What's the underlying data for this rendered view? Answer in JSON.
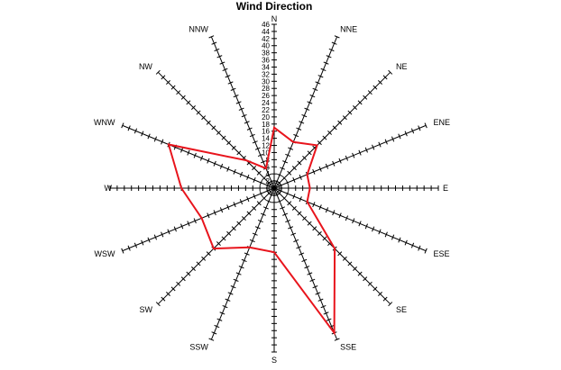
{
  "chart_data": {
    "type": "radar",
    "title": "Wind Direction",
    "directions": [
      "N",
      "NNE",
      "NE",
      "ENE",
      "E",
      "ESE",
      "SE",
      "SSE",
      "S",
      "SSW",
      "SW",
      "WSW",
      "W",
      "WNW",
      "NW",
      "NNW"
    ],
    "values": [
      17,
      14,
      17,
      10,
      10,
      10,
      24,
      44,
      18,
      18,
      24,
      22,
      26,
      32,
      11,
      6
    ],
    "rlim": [
      0,
      46
    ],
    "tick_labels": [
      "2",
      "4",
      "6",
      "8",
      "10",
      "12",
      "14",
      "16",
      "18",
      "20",
      "22",
      "24",
      "26",
      "28",
      "30",
      "32",
      "34",
      "36",
      "38",
      "40",
      "42",
      "44",
      "46"
    ],
    "grid": true,
    "series_color": "#e8141c",
    "axis_color": "#000000"
  }
}
